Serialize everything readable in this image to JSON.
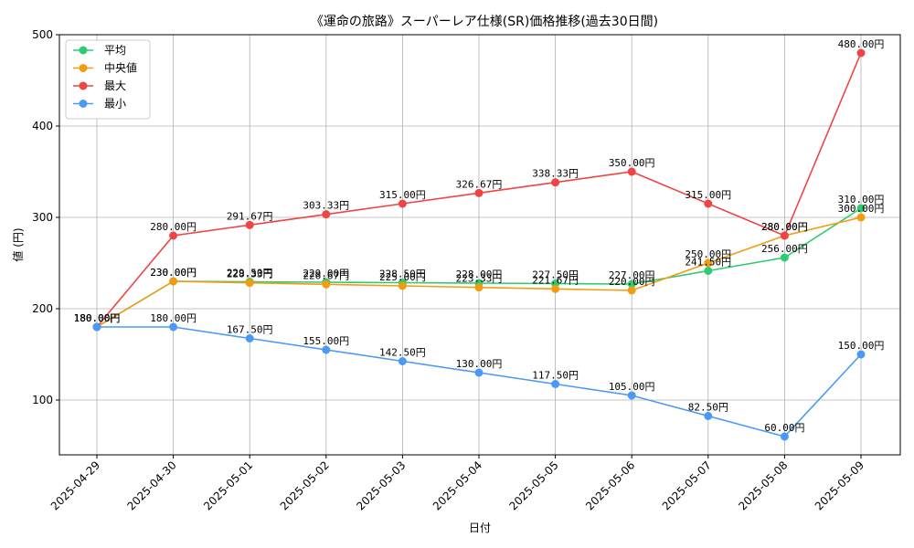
{
  "chart_data": {
    "type": "line",
    "title": "《運命の旅路》スーパーレア仕様(SR)価格推移(過去30日間)",
    "xlabel": "日付",
    "ylabel": "値 (円)",
    "ylim": [
      40,
      500
    ],
    "yticks": [
      100,
      200,
      300,
      400,
      500
    ],
    "grid": true,
    "legend_position": "top-left",
    "value_suffix": "円",
    "categories": [
      "2025-04-29",
      "2025-04-30",
      "2025-05-01",
      "2025-05-02",
      "2025-05-03",
      "2025-05-04",
      "2025-05-05",
      "2025-05-06",
      "2025-05-07",
      "2025-05-08",
      "2025-05-09"
    ],
    "series": [
      {
        "name": "平均",
        "color": "#2ecc71",
        "values": [
          180,
          230,
          229.5,
          229,
          228.5,
          228,
          227.5,
          227,
          241.5,
          256,
          310
        ]
      },
      {
        "name": "中央値",
        "color": "#f39c12",
        "values": [
          180,
          230,
          228.33,
          226.67,
          225,
          223.33,
          221.67,
          220,
          250,
          280,
          300
        ]
      },
      {
        "name": "最大",
        "color": "#ef4444",
        "values": [
          180,
          280,
          291.67,
          303.33,
          315,
          326.67,
          338.33,
          350,
          315,
          280,
          480
        ]
      },
      {
        "name": "最小",
        "color": "#4a9af5",
        "values": [
          180,
          180,
          167.5,
          155,
          142.5,
          130,
          117.5,
          105,
          82.5,
          60,
          150
        ]
      }
    ]
  }
}
